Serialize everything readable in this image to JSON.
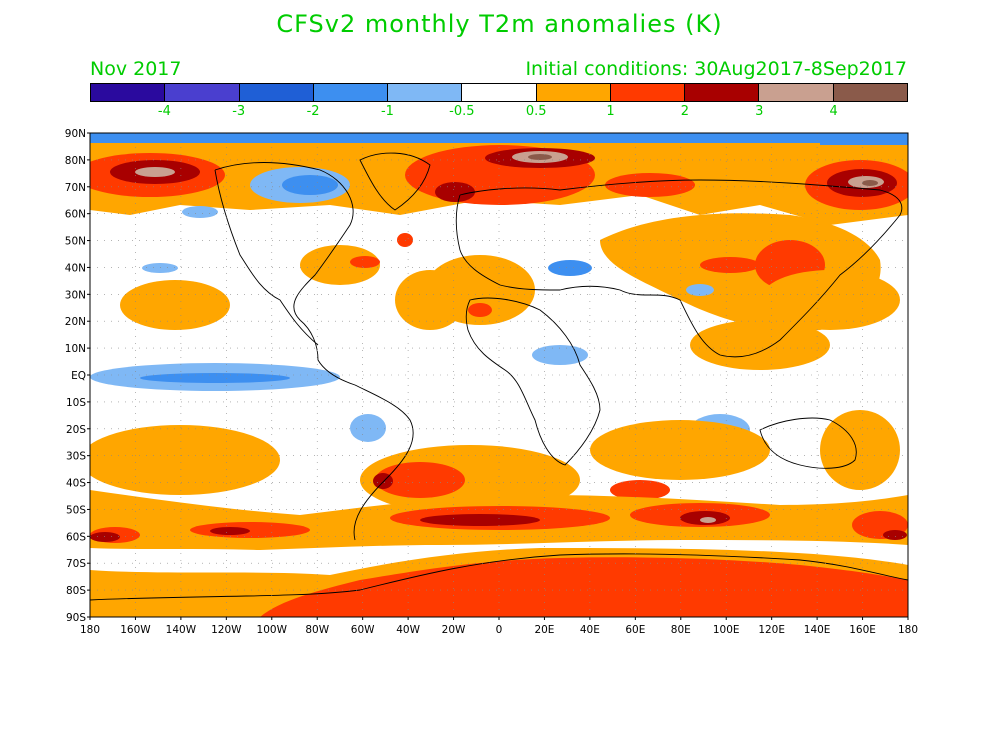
{
  "title": "CFSv2 monthly T2m anomalies (K)",
  "valid_month": "Nov 2017",
  "initial_conditions": "Initial conditions: 30Aug2017-8Sep2017",
  "colorbar": {
    "colors": [
      "#2a0a9e",
      "#4a3fcf",
      "#1f5fd6",
      "#3d8ff0",
      "#7fb8f5",
      "#ffffff",
      "#ffa600",
      "#ff3a00",
      "#a80000",
      "#c9a090",
      "#8a5a4a"
    ],
    "labels": [
      "-4",
      "-3",
      "-2",
      "-1",
      "-0.5",
      "0.5",
      "1",
      "2",
      "3",
      "4"
    ]
  },
  "map": {
    "lat_labels": [
      "90N",
      "80N",
      "70N",
      "60N",
      "50N",
      "40N",
      "30N",
      "20N",
      "10N",
      "EQ",
      "10S",
      "20S",
      "30S",
      "40S",
      "50S",
      "60S",
      "70S",
      "80S",
      "90S"
    ],
    "lon_labels": [
      "180",
      "160W",
      "140W",
      "120W",
      "100W",
      "80W",
      "60W",
      "40W",
      "20W",
      "0",
      "20E",
      "40E",
      "60E",
      "80E",
      "100E",
      "120E",
      "140E",
      "160E",
      "180"
    ],
    "anomaly_colors": {
      "weak_warm": "#ffa600",
      "warm": "#ff3a00",
      "very_warm": "#a80000",
      "extreme_warm": "#c9a090",
      "peak_warm": "#8a5a4a",
      "weak_cold": "#7fb8f5",
      "cold": "#3d8ff0"
    }
  }
}
